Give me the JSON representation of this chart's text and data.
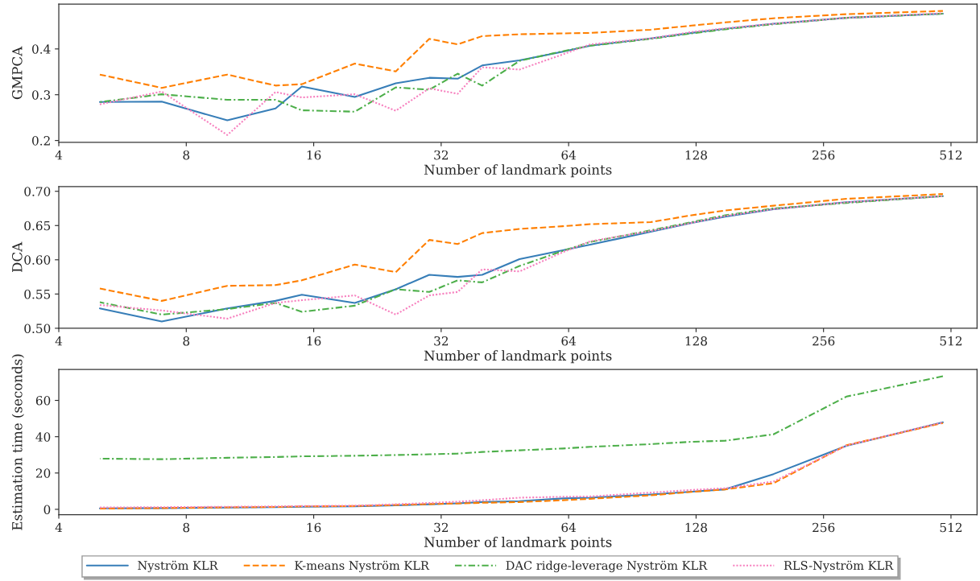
{
  "chart_data": [
    {
      "type": "line",
      "ylabel": "GMPCA",
      "xlabel": "Number of landmark points",
      "log": "x",
      "legend": "bottom",
      "grid": false,
      "xlim": [
        4,
        590
      ],
      "xticks": [
        4,
        8,
        16,
        32,
        64,
        128,
        256,
        512
      ],
      "ylim": [
        0.196,
        0.498
      ],
      "yticks": [
        0.2,
        0.3,
        0.4
      ],
      "x": [
        5,
        7,
        10,
        13,
        15,
        20,
        25,
        30,
        35,
        40,
        49,
        62,
        72,
        100,
        125,
        150,
        195,
        290,
        490
      ],
      "series": [
        {
          "name": "Nyström KLR",
          "color": "#377eb8",
          "line_style": "solid",
          "values": [
            0.284,
            0.285,
            0.244,
            0.27,
            0.318,
            0.295,
            0.325,
            0.337,
            0.335,
            0.364,
            0.375,
            0.394,
            0.407,
            0.423,
            0.435,
            0.444,
            0.455,
            0.468,
            0.477
          ]
        },
        {
          "name": "K-means Nyström KLR",
          "color": "#ff7f00",
          "line_style": "dashed",
          "values": [
            0.344,
            0.315,
            0.344,
            0.32,
            0.323,
            0.368,
            0.351,
            0.422,
            0.41,
            0.428,
            0.432,
            0.434,
            0.435,
            0.442,
            0.451,
            0.458,
            0.467,
            0.476,
            0.483
          ]
        },
        {
          "name": "DAC ridge-leverage Nyström KLR",
          "color": "#4daf4a",
          "line_style": "dashdot",
          "values": [
            0.284,
            0.301,
            0.289,
            0.289,
            0.266,
            0.263,
            0.316,
            0.311,
            0.346,
            0.32,
            0.374,
            0.395,
            0.407,
            0.422,
            0.434,
            0.443,
            0.454,
            0.468,
            0.477
          ]
        },
        {
          "name": "RLS-Nyström KLR",
          "color": "#f781bf",
          "line_style": "dotted",
          "values": [
            0.279,
            0.307,
            0.212,
            0.306,
            0.294,
            0.301,
            0.265,
            0.314,
            0.302,
            0.36,
            0.355,
            0.388,
            0.41,
            0.423,
            0.437,
            0.445,
            0.455,
            0.468,
            0.478
          ]
        }
      ]
    },
    {
      "type": "line",
      "ylabel": "DCA",
      "xlabel": "Number of landmark points",
      "log": "x",
      "grid": false,
      "xlim": [
        4,
        590
      ],
      "xticks": [
        4,
        8,
        16,
        32,
        64,
        128,
        256,
        512
      ],
      "ylim": [
        0.5,
        0.707
      ],
      "yticks": [
        {
          "value": 0.5,
          "label": "0.50"
        },
        {
          "value": 0.55,
          "label": "0.55"
        },
        {
          "value": 0.6,
          "label": "0.60"
        },
        {
          "value": 0.65,
          "label": "0.65"
        },
        {
          "value": 0.7,
          "label": "0.70"
        }
      ],
      "x": [
        5,
        7,
        10,
        13,
        15,
        20,
        25,
        30,
        35,
        40,
        49,
        62,
        72,
        100,
        125,
        150,
        195,
        290,
        490
      ],
      "series": [
        {
          "color": "#377eb8",
          "line_style": "solid",
          "values": [
            0.529,
            0.51,
            0.529,
            0.54,
            0.549,
            0.537,
            0.557,
            0.578,
            0.575,
            0.578,
            0.601,
            0.614,
            0.622,
            0.641,
            0.654,
            0.663,
            0.674,
            0.684,
            0.693
          ]
        },
        {
          "color": "#ff7f00",
          "line_style": "dashed",
          "values": [
            0.558,
            0.54,
            0.562,
            0.563,
            0.57,
            0.593,
            0.582,
            0.629,
            0.623,
            0.639,
            0.645,
            0.649,
            0.652,
            0.655,
            0.665,
            0.672,
            0.679,
            0.689,
            0.696
          ]
        },
        {
          "color": "#4daf4a",
          "line_style": "dashdot",
          "values": [
            0.538,
            0.52,
            0.528,
            0.537,
            0.524,
            0.533,
            0.557,
            0.553,
            0.57,
            0.567,
            0.591,
            0.613,
            0.626,
            0.643,
            0.655,
            0.665,
            0.675,
            0.683,
            0.693
          ]
        },
        {
          "color": "#f781bf",
          "line_style": "dotted",
          "values": [
            0.534,
            0.526,
            0.514,
            0.537,
            0.541,
            0.548,
            0.52,
            0.548,
            0.553,
            0.586,
            0.583,
            0.611,
            0.627,
            0.642,
            0.654,
            0.664,
            0.674,
            0.684,
            0.693
          ]
        }
      ]
    },
    {
      "type": "line",
      "ylabel": "Estimation time (seconds)",
      "xlabel": "Number of landmark points",
      "log": "x",
      "grid": false,
      "xlim": [
        4,
        590
      ],
      "xticks": [
        4,
        8,
        16,
        32,
        64,
        128,
        256,
        512
      ],
      "ylim": [
        -3,
        77
      ],
      "yticks": [
        0,
        20,
        40,
        60
      ],
      "x": [
        5,
        7,
        10,
        13,
        15,
        20,
        25,
        30,
        35,
        40,
        49,
        62,
        72,
        100,
        125,
        150,
        195,
        290,
        490
      ],
      "series": [
        {
          "color": "#377eb8",
          "line_style": "solid",
          "values": [
            0.5,
            0.7,
            1.0,
            1.2,
            1.4,
            1.7,
            2.2,
            2.8,
            3.3,
            4.0,
            4.5,
            6.0,
            6.4,
            8.2,
            9.7,
            11.0,
            19.4,
            35.0,
            47.9
          ]
        },
        {
          "color": "#ff7f00",
          "line_style": "dashed",
          "values": [
            0.4,
            0.7,
            1.1,
            1.3,
            1.6,
            1.8,
            2.4,
            2.9,
            3.2,
            3.6,
            4.0,
            5.0,
            5.8,
            7.7,
            9.6,
            11.0,
            14.4,
            35.3,
            47.5
          ]
        },
        {
          "color": "#4daf4a",
          "line_style": "dashdot",
          "values": [
            27.9,
            27.6,
            28.4,
            28.8,
            29.2,
            29.5,
            29.9,
            30.3,
            30.7,
            31.6,
            32.5,
            33.5,
            34.4,
            35.9,
            37.2,
            37.8,
            41.3,
            62.1,
            73.3
          ]
        },
        {
          "color": "#f781bf",
          "line_style": "dotted",
          "values": [
            1.0,
            1.2,
            1.4,
            1.6,
            1.8,
            2.0,
            2.8,
            3.5,
            4.2,
            5.0,
            6.4,
            6.9,
            7.1,
            9.2,
            10.7,
            11.6,
            15.3,
            35.1,
            47.9
          ]
        }
      ]
    }
  ]
}
